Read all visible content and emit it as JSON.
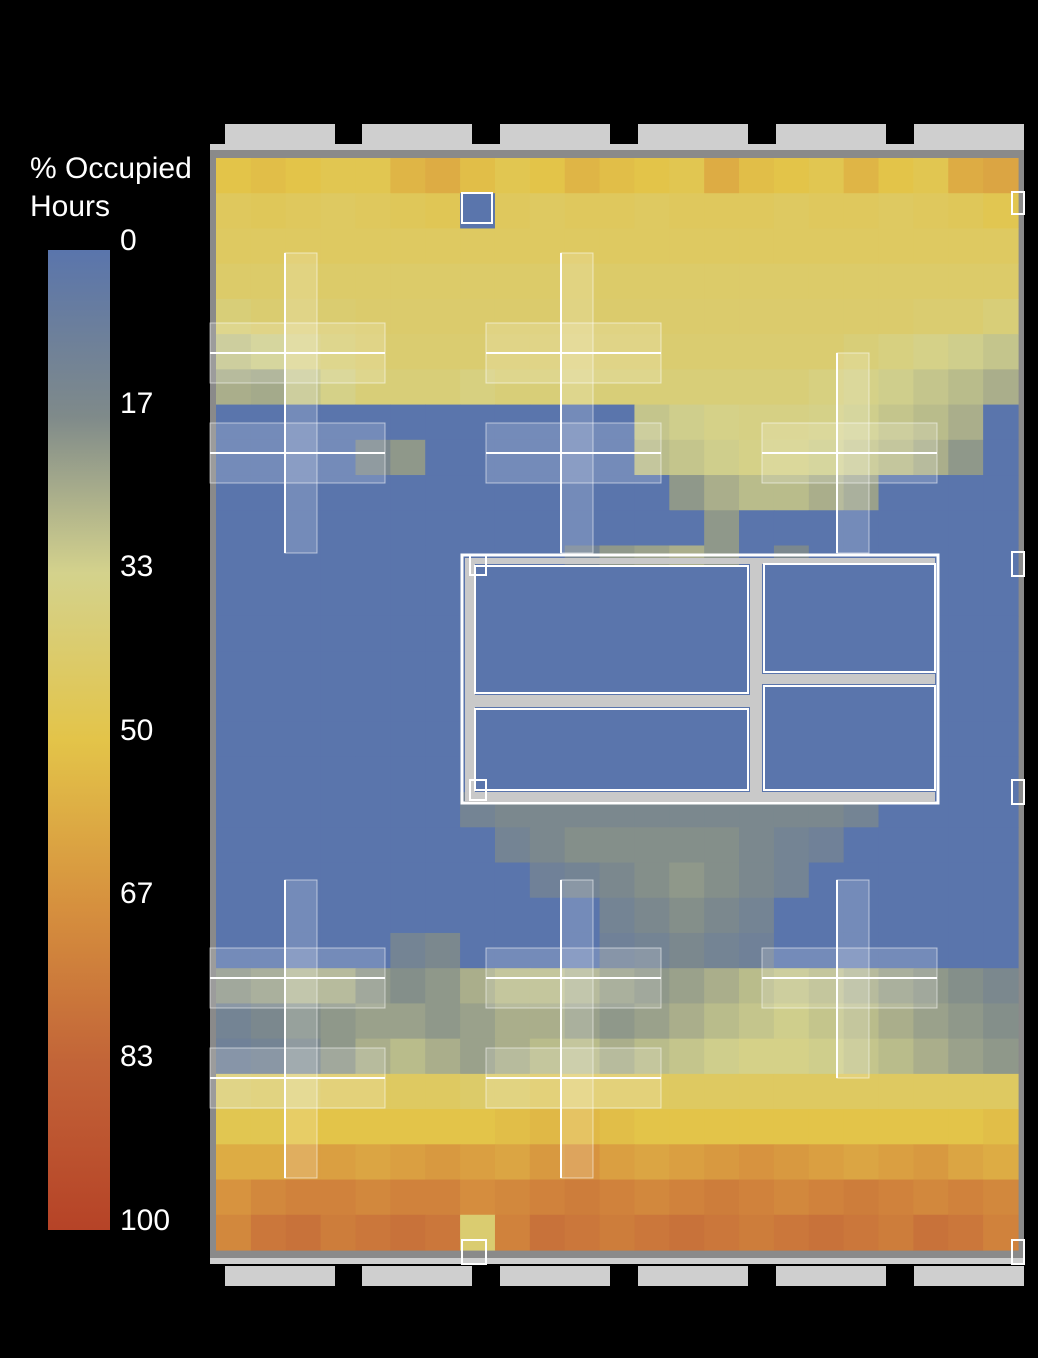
{
  "legend": {
    "title_line1": "% Occupied",
    "title_line2": "Hours",
    "ticks": [
      "0",
      "17",
      "33",
      "50",
      "67",
      "83",
      "100"
    ],
    "colors": [
      "#5a75ac",
      "#7f8a8a",
      "#d4d28c",
      "#e3c449",
      "#d6903e",
      "#c26438",
      "#b64327"
    ]
  },
  "chart_data": {
    "type": "heatmap",
    "value_range": [
      0,
      100
    ],
    "columns": 23,
    "rows": 31,
    "note_zones": "values are % of occupied hours per grid cell (estimated from colour)",
    "row_values_top_to_bottom": [
      [
        50,
        52,
        50,
        48,
        48,
        55,
        58,
        52,
        48,
        50,
        55,
        52,
        50,
        48,
        58,
        52,
        50,
        48,
        55,
        50,
        48,
        58,
        60
      ],
      [
        45,
        46,
        45,
        44,
        45,
        46,
        47,
        0,
        45,
        44,
        45,
        45,
        44,
        45,
        45,
        45,
        44,
        45,
        45,
        44,
        45,
        46,
        48
      ],
      [
        44,
        44,
        44,
        44,
        44,
        44,
        44,
        44,
        44,
        44,
        44,
        44,
        44,
        44,
        44,
        44,
        44,
        44,
        44,
        44,
        44,
        44,
        44
      ],
      [
        42,
        42,
        42,
        42,
        42,
        42,
        42,
        42,
        42,
        42,
        42,
        42,
        42,
        42,
        42,
        42,
        42,
        42,
        42,
        42,
        42,
        42,
        42
      ],
      [
        38,
        40,
        40,
        40,
        41,
        41,
        41,
        41,
        41,
        41,
        41,
        41,
        41,
        41,
        41,
        41,
        41,
        41,
        41,
        41,
        40,
        40,
        38
      ],
      [
        30,
        32,
        36,
        38,
        40,
        40,
        40,
        40,
        40,
        40,
        40,
        40,
        40,
        40,
        40,
        40,
        40,
        40,
        38,
        36,
        34,
        32,
        30
      ],
      [
        25,
        24,
        30,
        34,
        38,
        38,
        38,
        36,
        38,
        38,
        38,
        38,
        38,
        38,
        38,
        38,
        38,
        36,
        34,
        32,
        30,
        28,
        25
      ],
      [
        0,
        0,
        0,
        0,
        0,
        0,
        0,
        0,
        0,
        0,
        0,
        0,
        30,
        32,
        34,
        35,
        35,
        34,
        32,
        30,
        28,
        25,
        0
      ],
      [
        0,
        0,
        0,
        0,
        15,
        20,
        0,
        0,
        0,
        0,
        0,
        0,
        28,
        30,
        32,
        34,
        34,
        32,
        30,
        28,
        25,
        20,
        0
      ],
      [
        0,
        0,
        0,
        0,
        0,
        0,
        0,
        0,
        0,
        0,
        0,
        0,
        0,
        20,
        25,
        28,
        28,
        25,
        22,
        0,
        0,
        0,
        0
      ],
      [
        0,
        0,
        0,
        0,
        0,
        0,
        0,
        0,
        0,
        0,
        0,
        0,
        0,
        0,
        20,
        0,
        0,
        0,
        0,
        0,
        0,
        0,
        0
      ],
      [
        0,
        0,
        0,
        0,
        0,
        0,
        0,
        0,
        0,
        0,
        12,
        20,
        22,
        25,
        20,
        0,
        15,
        0,
        0,
        0,
        0,
        0,
        0
      ],
      [
        0,
        0,
        0,
        0,
        0,
        0,
        0,
        0,
        0,
        0,
        0,
        0,
        0,
        0,
        0,
        0,
        0,
        0,
        0,
        0,
        0,
        0,
        0
      ],
      [
        0,
        0,
        0,
        0,
        0,
        0,
        0,
        0,
        0,
        0,
        0,
        0,
        0,
        0,
        0,
        0,
        0,
        0,
        0,
        0,
        0,
        0,
        0
      ],
      [
        0,
        0,
        0,
        0,
        0,
        0,
        0,
        0,
        0,
        0,
        0,
        0,
        0,
        0,
        0,
        0,
        0,
        0,
        0,
        0,
        0,
        0,
        0
      ],
      [
        0,
        0,
        0,
        0,
        0,
        0,
        0,
        0,
        0,
        0,
        0,
        0,
        0,
        0,
        0,
        0,
        0,
        0,
        0,
        0,
        0,
        0,
        0
      ],
      [
        0,
        0,
        0,
        0,
        0,
        0,
        0,
        0,
        0,
        0,
        0,
        0,
        0,
        0,
        0,
        0,
        0,
        0,
        0,
        0,
        0,
        0,
        0
      ],
      [
        0,
        0,
        0,
        0,
        0,
        0,
        0,
        0,
        0,
        0,
        0,
        0,
        0,
        0,
        0,
        0,
        0,
        0,
        0,
        0,
        0,
        0,
        0
      ],
      [
        0,
        0,
        0,
        0,
        0,
        0,
        0,
        12,
        15,
        15,
        15,
        15,
        15,
        15,
        15,
        15,
        15,
        15,
        12,
        0,
        0,
        0,
        0
      ],
      [
        0,
        0,
        0,
        0,
        0,
        0,
        0,
        0,
        12,
        15,
        18,
        18,
        18,
        18,
        18,
        15,
        12,
        10,
        0,
        0,
        0,
        0,
        0
      ],
      [
        0,
        0,
        0,
        0,
        0,
        0,
        0,
        0,
        0,
        10,
        12,
        15,
        18,
        20,
        18,
        15,
        12,
        0,
        0,
        0,
        0,
        0,
        0
      ],
      [
        0,
        0,
        0,
        0,
        0,
        0,
        0,
        0,
        0,
        0,
        0,
        12,
        15,
        18,
        15,
        12,
        0,
        0,
        0,
        0,
        0,
        0,
        0
      ],
      [
        0,
        0,
        0,
        0,
        0,
        12,
        15,
        0,
        0,
        0,
        0,
        10,
        12,
        15,
        12,
        10,
        0,
        0,
        0,
        0,
        0,
        0,
        0
      ],
      [
        20,
        22,
        25,
        25,
        20,
        18,
        20,
        25,
        28,
        28,
        25,
        22,
        20,
        22,
        25,
        28,
        30,
        28,
        25,
        22,
        20,
        18,
        15
      ],
      [
        12,
        15,
        18,
        20,
        22,
        22,
        20,
        22,
        25,
        25,
        22,
        20,
        22,
        25,
        28,
        30,
        32,
        30,
        28,
        25,
        22,
        20,
        18
      ],
      [
        10,
        12,
        15,
        20,
        25,
        28,
        25,
        22,
        25,
        28,
        28,
        25,
        28,
        30,
        32,
        34,
        34,
        32,
        30,
        28,
        25,
        22,
        20
      ],
      [
        40,
        42,
        42,
        44,
        44,
        44,
        44,
        42,
        42,
        44,
        44,
        44,
        44,
        44,
        44,
        44,
        44,
        44,
        44,
        44,
        44,
        44,
        44
      ],
      [
        48,
        48,
        50,
        50,
        50,
        50,
        50,
        50,
        52,
        54,
        54,
        52,
        50,
        50,
        50,
        50,
        50,
        50,
        50,
        50,
        50,
        50,
        52
      ],
      [
        58,
        58,
        62,
        62,
        60,
        62,
        64,
        62,
        60,
        64,
        66,
        62,
        60,
        62,
        64,
        66,
        64,
        62,
        60,
        62,
        64,
        60,
        58
      ],
      [
        66,
        70,
        72,
        72,
        70,
        72,
        72,
        68,
        70,
        72,
        74,
        72,
        70,
        72,
        74,
        72,
        70,
        72,
        74,
        72,
        70,
        72,
        70
      ],
      [
        70,
        76,
        78,
        74,
        76,
        78,
        76,
        40,
        72,
        78,
        76,
        74,
        76,
        78,
        76,
        74,
        76,
        78,
        76,
        74,
        78,
        76,
        72
      ]
    ]
  },
  "plan": {
    "mullion_count": 6
  }
}
